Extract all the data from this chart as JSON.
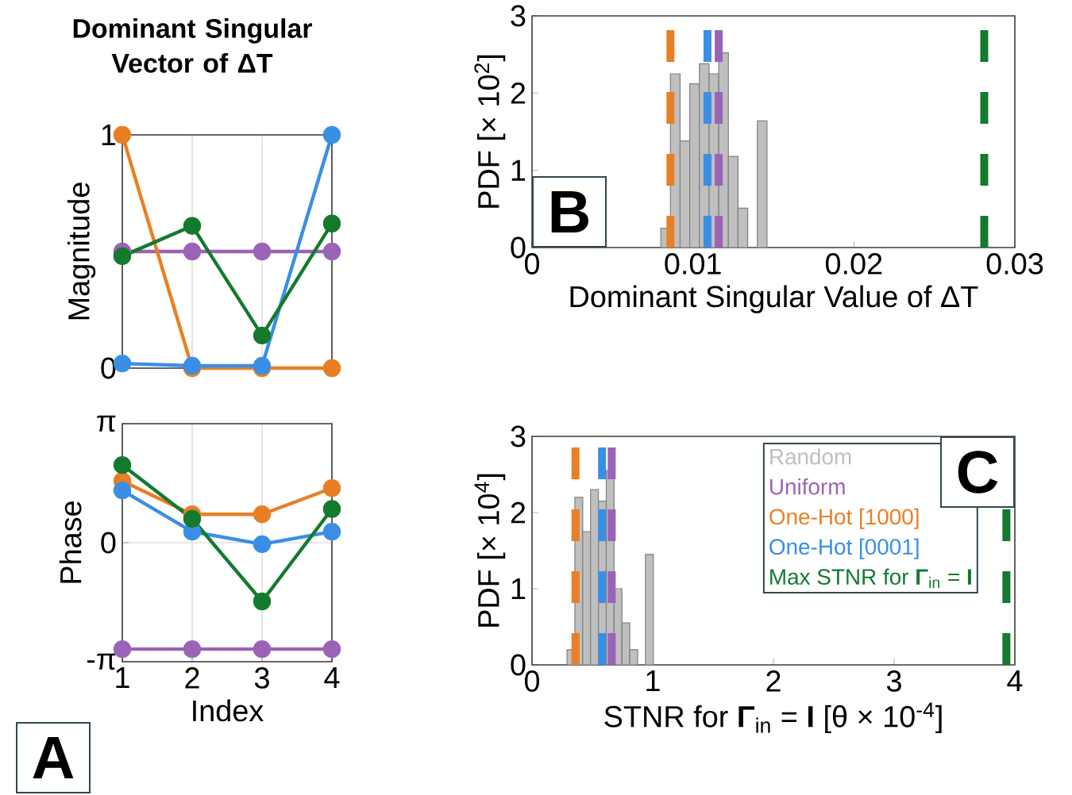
{
  "chart_data": [
    {
      "type": "line",
      "title": "Dominant Singular Vector of ΔT",
      "ylabel": "Magnitude",
      "x": [
        1,
        2,
        3,
        4
      ],
      "xlim": [
        1,
        4
      ],
      "xticks": [
        1,
        2,
        3,
        4
      ],
      "ylim": [
        0,
        1
      ],
      "yticks": [
        0,
        1
      ],
      "tick_labels": "y",
      "grid": true,
      "marker": "circle",
      "line_style": "solid",
      "series": [
        {
          "color": "#9b63b8",
          "values": [
            0.5,
            0.5,
            0.5,
            0.5
          ]
        },
        {
          "color": "#e97f24",
          "values": [
            1.0,
            0.0,
            0.0,
            0.0
          ]
        },
        {
          "color": "#3a8ee6",
          "values": [
            0.02,
            0.01,
            0.01,
            1.0
          ]
        },
        {
          "color": "#137a2e",
          "values": [
            0.48,
            0.61,
            0.14,
            0.62
          ]
        }
      ]
    },
    {
      "type": "line",
      "ylabel": "Phase",
      "xlabel": "Index",
      "x": [
        1,
        2,
        3,
        4
      ],
      "xlim": [
        1,
        4
      ],
      "xticks": [
        1,
        2,
        3,
        4
      ],
      "ylim": [
        -3.1416,
        3.1416
      ],
      "yticks": [
        {
          "value": -3.1416,
          "label": "-π"
        },
        0,
        {
          "value": 3.1416,
          "label": "π"
        }
      ],
      "grid": true,
      "marker": "circle",
      "line_style": "solid",
      "annotations": [
        "A"
      ],
      "series": [
        {
          "color": "#9b63b8",
          "values": [
            -2.81,
            -2.81,
            -2.81,
            -2.81
          ]
        },
        {
          "color": "#e97f24",
          "values": [
            1.63,
            0.75,
            0.75,
            1.44
          ]
        },
        {
          "color": "#3a8ee6",
          "values": [
            1.38,
            0.29,
            -0.04,
            0.29
          ]
        },
        {
          "color": "#137a2e",
          "values": [
            2.05,
            0.63,
            -1.55,
            0.89
          ]
        }
      ]
    },
    {
      "type": "histogram",
      "xlabel": "Dominant Singular Value of ΔT",
      "ylabel": "PDF [× 10$^{2}$]",
      "xlim": [
        0,
        0.03
      ],
      "xticks": [
        0,
        0.01,
        0.02,
        0.03
      ],
      "ylim": [
        0,
        3
      ],
      "yticks": [
        0,
        1,
        2,
        3
      ],
      "annotations": [
        "B"
      ],
      "bins": [
        0.008,
        0.0086,
        0.0092,
        0.0098,
        0.0104,
        0.011,
        0.0116,
        0.0122,
        0.0128,
        0.0134,
        0.014,
        0.0146
      ],
      "series": [
        {
          "color": "#bfbfbf",
          "values": [
            0.25,
            2.25,
            1.38,
            2.12,
            2.38,
            2.25,
            2.52,
            1.18,
            0.51,
            0,
            1.64
          ]
        }
      ],
      "ref_lines": [
        {
          "axis": "x",
          "value": 0.0116,
          "color": "#9b63b8",
          "line_style": "dashed"
        },
        {
          "axis": "x",
          "value": 0.0086,
          "color": "#e97f24",
          "line_style": "dashed"
        },
        {
          "axis": "x",
          "value": 0.0109,
          "color": "#3a8ee6",
          "line_style": "dashed"
        },
        {
          "axis": "x",
          "value": 0.0281,
          "color": "#137a2e",
          "line_style": "dashed"
        }
      ]
    },
    {
      "type": "histogram",
      "xlabel": "STNR for **Γ**$_{in}$ = **I**  [θ × 10$^{-4}$]",
      "ylabel": "PDF [× 10$^{4}$]",
      "xlim": [
        0,
        4
      ],
      "xticks": [
        0,
        1,
        2,
        3,
        4
      ],
      "ylim": [
        0,
        3
      ],
      "yticks": [
        0,
        1,
        2,
        3
      ],
      "legend": "top right",
      "annotations": [
        "C"
      ],
      "bins": [
        0.29,
        0.355,
        0.42,
        0.485,
        0.55,
        0.615,
        0.68,
        0.745,
        0.81,
        0.875,
        0.94,
        1.005
      ],
      "series": [
        {
          "name": "Random",
          "color": "#bfbfbf",
          "values": [
            0.2,
            2.2,
            1.75,
            2.3,
            2.15,
            2.55,
            1.0,
            0.55,
            0.2,
            0,
            1.45
          ]
        }
      ],
      "ref_lines": [
        {
          "axis": "x",
          "value": 0.66,
          "label": "Uniform",
          "color": "#9b63b8",
          "line_style": "dashed"
        },
        {
          "axis": "x",
          "value": 0.36,
          "label": "One-Hot [1000]",
          "color": "#e97f24",
          "line_style": "dashed"
        },
        {
          "axis": "x",
          "value": 0.58,
          "label": "One-Hot [0001]",
          "color": "#3a8ee6",
          "line_style": "dashed"
        },
        {
          "axis": "x",
          "value": 3.93,
          "label": "Max STNR for **Γ**$_{in}$ = **I**",
          "color": "#137a2e",
          "line_style": "dashed"
        }
      ]
    }
  ]
}
